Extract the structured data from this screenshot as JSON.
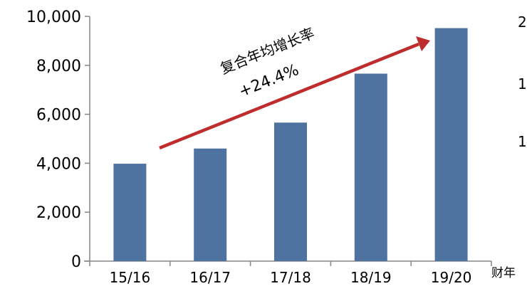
{
  "chart_data": {
    "type": "bar",
    "categories": [
      "15/16",
      "16/17",
      "17/18",
      "18/19",
      "19/20"
    ],
    "values": [
      3980,
      4600,
      5660,
      7660,
      9520
    ],
    "ylim": [
      0,
      10000
    ],
    "yticks": [
      "0",
      "2,000",
      "4,000",
      "6,000",
      "8,000",
      "10,000"
    ],
    "xunit_label": "财年",
    "bar_color": "#4F73A1",
    "arrow_color": "#BE2C2E",
    "annotation": {
      "label": "复合年均增长率",
      "value": "+24.4%"
    },
    "right_axis_partial_labels": [
      "2",
      "1",
      "1"
    ],
    "grid": false
  }
}
